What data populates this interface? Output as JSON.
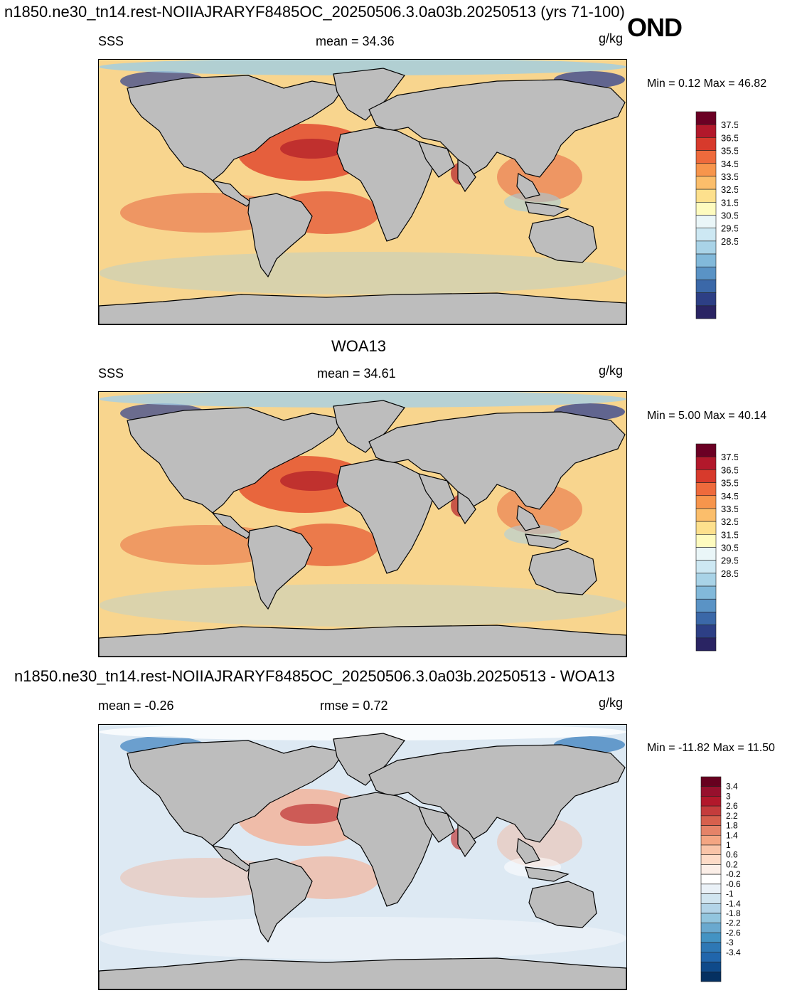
{
  "header": {
    "title": "n1850.ne30_tn14.rest-NOIIAJRARYF8485OC_20250506.3.0a03b.20250513 (yrs 71-100)",
    "season": "OND"
  },
  "panels": [
    {
      "id": "model",
      "heading": "",
      "left_label": "SSS",
      "center_label": "mean =  34.36",
      "units": "g/kg",
      "minmax": "Min =   0.12 Max =  46.82",
      "colorbar_labels": [
        "37.5",
        "36.5",
        "35.5",
        "34.5",
        "33.5",
        "32.5",
        "31.5",
        "30.5",
        "29.5",
        "28.5"
      ],
      "colorbar_colors": [
        "#6b0024",
        "#b2182b",
        "#d73a2c",
        "#ee6a3c",
        "#f7954c",
        "#fbbe6b",
        "#fde08d",
        "#fefbbf",
        "#eaf6f8",
        "#cde8f3",
        "#a9d3e7",
        "#82b9da",
        "#5a93c5",
        "#3b68a8",
        "#2d3f85",
        "#2a2463"
      ],
      "colors": {
        "ocean_base": "#f8d58e",
        "land": "#bdbdbd",
        "warm": "#e24a2f",
        "hot": "#b3202a",
        "cold": "#2f3f8f",
        "fresh": "#9fcde4"
      }
    },
    {
      "id": "obs",
      "heading": "WOA13",
      "left_label": "SSS",
      "center_label": "mean =  34.61",
      "units": "g/kg",
      "minmax": "Min =   5.00 Max =  40.14",
      "colorbar_labels": [
        "37.5",
        "36.5",
        "35.5",
        "34.5",
        "33.5",
        "32.5",
        "31.5",
        "30.5",
        "29.5",
        "28.5"
      ],
      "colorbar_colors": [
        "#6b0024",
        "#b2182b",
        "#d73a2c",
        "#ee6a3c",
        "#f7954c",
        "#fbbe6b",
        "#fde08d",
        "#fefbbf",
        "#eaf6f8",
        "#cde8f3",
        "#a9d3e7",
        "#82b9da",
        "#5a93c5",
        "#3b68a8",
        "#2d3f85",
        "#2a2463"
      ],
      "colors": {
        "ocean_base": "#f8d58e",
        "land": "#bdbdbd",
        "warm": "#e5522f",
        "hot": "#b3202a",
        "cold": "#2f3f8f",
        "fresh": "#a6d0e6"
      }
    },
    {
      "id": "diff",
      "heading": "n1850.ne30_tn14.rest-NOIIAJRARYF8485OC_20250506.3.0a03b.20250513 - WOA13",
      "left_label": "mean =  -0.26",
      "center_label": "rmse =   0.72",
      "units": "g/kg",
      "minmax": "Min = -11.82 Max =  11.50",
      "colorbar_labels": [
        "3.4",
        "3",
        "2.6",
        "2.2",
        "1.8",
        "1.4",
        "1",
        "0.6",
        "0.2",
        "-0.2",
        "-0.6",
        "-1",
        "-1.4",
        "-1.8",
        "-2.2",
        "-2.6",
        "-3",
        "-3.4"
      ],
      "colorbar_colors": [
        "#67001f",
        "#97102d",
        "#b2182b",
        "#c43c3c",
        "#d6604d",
        "#e58368",
        "#f4a582",
        "#f9c4a8",
        "#fddbc7",
        "#fbeee7",
        "#ffffff",
        "#eaf1f7",
        "#d1e5f0",
        "#b3d4e8",
        "#92c5de",
        "#6aa9cf",
        "#4393c3",
        "#2e78b5",
        "#2166ac",
        "#0f4a8a",
        "#053061"
      ],
      "colors": {
        "ocean_base": "#dde9f3",
        "land": "#bdbdbd",
        "warm": "#f2b49b",
        "hot": "#c23b3b",
        "cold": "#3b7fbd",
        "fresh": "#ffffff"
      }
    }
  ]
}
